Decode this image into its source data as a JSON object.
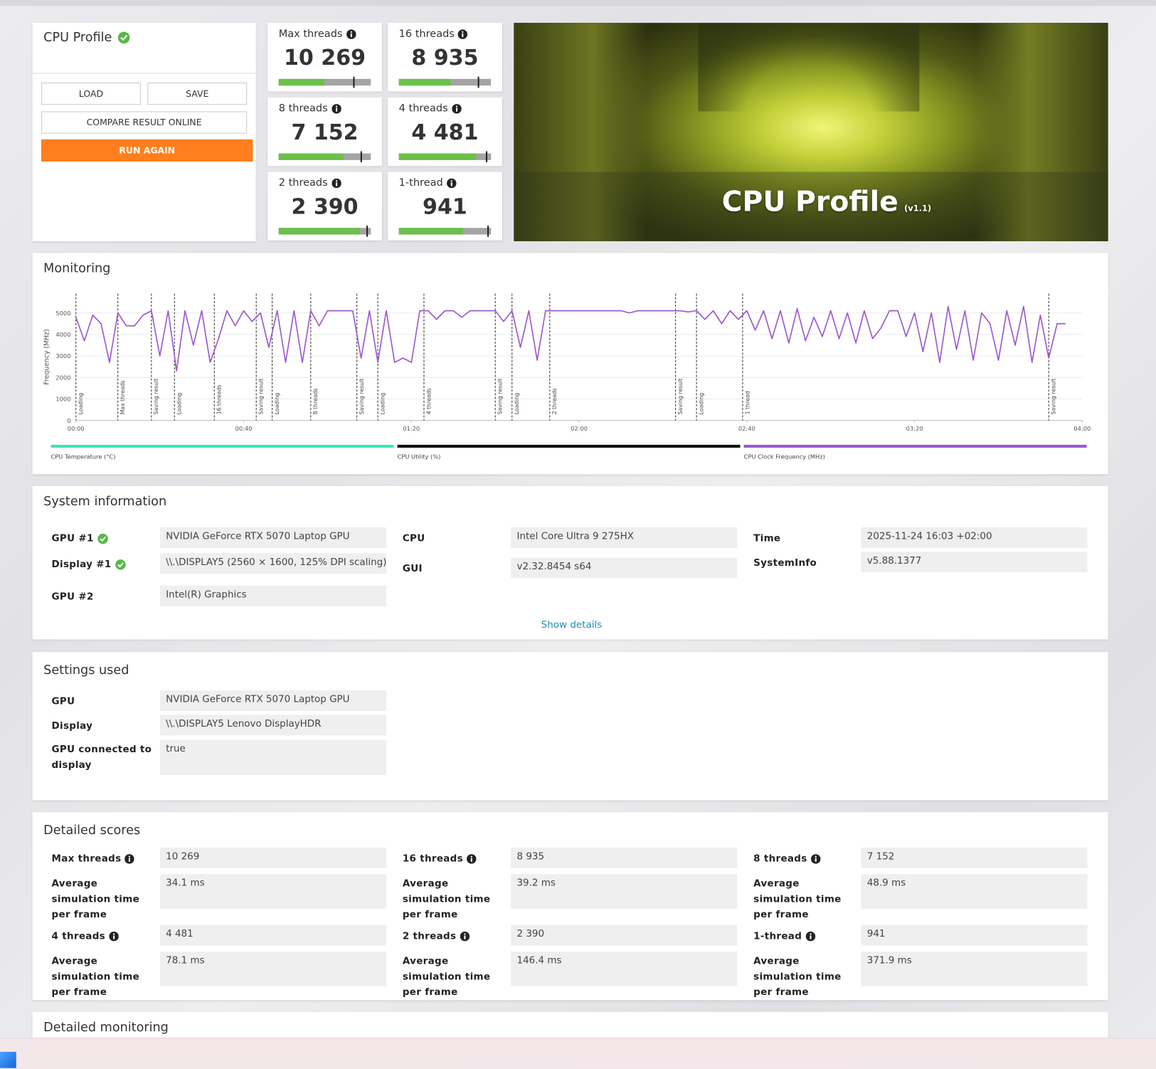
{
  "profile_card": {
    "title": "CPU Profile",
    "buttons": [
      "LOAD",
      "SAVE",
      "COMPARE RESULT ONLINE",
      "RUN AGAIN"
    ]
  },
  "scores": [
    {
      "label": "Max threads",
      "value": "10 269"
    },
    {
      "label": "16 threads",
      "value": "8 935"
    },
    {
      "label": "8 threads",
      "value": "7 152"
    },
    {
      "label": "4 threads",
      "value": "4 481"
    },
    {
      "label": "2 threads",
      "value": "2 390"
    },
    {
      "label": "1-thread",
      "value": "941"
    }
  ],
  "hero": {
    "title": "CPU Profile",
    "version": "(v1.1)"
  },
  "chart_data": {
    "type": "line",
    "title": "Monitoring",
    "y_label": "Frequency (MHz)",
    "xlim": [
      0,
      240
    ],
    "xticks": [
      {
        "value": 0,
        "label": "00:00"
      },
      {
        "value": 40,
        "label": "00:40"
      },
      {
        "value": 80,
        "label": "01:20"
      },
      {
        "value": 120,
        "label": "02:00"
      },
      {
        "value": 160,
        "label": "02:40"
      },
      {
        "value": 200,
        "label": "03:20"
      },
      {
        "value": 240,
        "label": "04:00"
      }
    ],
    "ylim": [
      0,
      5900
    ],
    "yticks": [
      0,
      1000,
      2000,
      3000,
      4000,
      5000
    ],
    "grid": true,
    "x": [
      0,
      2,
      4,
      6,
      8,
      10,
      12,
      14,
      16,
      18,
      20,
      22,
      24,
      26,
      28,
      30,
      32,
      34,
      36,
      38,
      40,
      42,
      44,
      46,
      48,
      50,
      52,
      54,
      56,
      58,
      60,
      62,
      64,
      66,
      68,
      70,
      72,
      74,
      76,
      78,
      80,
      82,
      84,
      86,
      88,
      90,
      92,
      94,
      96,
      98,
      100,
      102,
      104,
      106,
      108,
      110,
      112,
      114,
      116,
      118,
      120,
      122,
      124,
      126,
      128,
      130,
      132,
      134,
      136,
      138,
      140,
      142,
      144,
      146,
      148,
      150,
      152,
      154,
      156,
      158,
      160,
      162,
      164,
      166,
      168,
      170,
      172,
      174,
      176,
      178,
      180,
      182,
      184,
      186,
      188,
      190,
      192,
      194,
      196,
      198,
      200,
      202,
      204,
      206,
      208,
      210,
      212,
      214,
      216,
      218,
      220,
      222,
      224,
      226,
      228,
      230,
      232,
      234,
      236
    ],
    "series": [
      {
        "name": "CPU Clock Frequency (MHz)",
        "color": "#9b59d0",
        "values": [
          4800,
          3700,
          4900,
          4500,
          2700,
          5000,
          4400,
          4400,
          4900,
          5100,
          3000,
          5100,
          2300,
          5100,
          3500,
          5100,
          2700,
          3800,
          5100,
          4400,
          5100,
          4600,
          5000,
          3400,
          5100,
          2700,
          5100,
          2700,
          5100,
          4400,
          5100,
          5100,
          5100,
          5100,
          2900,
          5100,
          2700,
          5100,
          2700,
          2900,
          2700,
          5100,
          5100,
          4700,
          5100,
          5100,
          4800,
          5100,
          5100,
          5100,
          5100,
          4600,
          5100,
          3400,
          5100,
          2800,
          5100,
          5100,
          5100,
          5100,
          5100,
          5100,
          5100,
          5100,
          5100,
          5100,
          5000,
          5100,
          5100,
          5100,
          5100,
          5100,
          5100,
          5050,
          5100,
          4700,
          5100,
          4500,
          5100,
          4700,
          5100,
          4200,
          5100,
          3800,
          5100,
          3600,
          5200,
          3700,
          4800,
          3900,
          5100,
          3800,
          5000,
          3600,
          5100,
          3800,
          4300,
          5100,
          5100,
          3900,
          5000,
          3200,
          5000,
          2700,
          5300,
          3300,
          5100,
          2800,
          5000,
          4500,
          2800,
          5100,
          3500,
          5300,
          2700,
          4900,
          2900,
          4500,
          4500
        ]
      }
    ],
    "legend": [
      {
        "name": "CPU Temperature (°C)",
        "color": "#3ee6b9"
      },
      {
        "name": "CPU Utility (%)",
        "color": "#111111"
      }
    ],
    "markers": [
      {
        "x": 0,
        "label": "Loading"
      },
      {
        "x": 10,
        "label": "Max threads"
      },
      {
        "x": 18,
        "label": "Saving result"
      },
      {
        "x": 23.5,
        "label": "Loading"
      },
      {
        "x": 33,
        "label": "16 threads"
      },
      {
        "x": 43,
        "label": "Saving result"
      },
      {
        "x": 46.8,
        "label": "Loading"
      },
      {
        "x": 56,
        "label": "8 threads"
      },
      {
        "x": 67,
        "label": "Saving result"
      },
      {
        "x": 72,
        "label": "Loading"
      },
      {
        "x": 83,
        "label": "4 threads"
      },
      {
        "x": 100,
        "label": "Saving result"
      },
      {
        "x": 104,
        "label": "Loading"
      },
      {
        "x": 113,
        "label": "2 threads"
      },
      {
        "x": 143,
        "label": "Saving result"
      },
      {
        "x": 148,
        "label": "Loading"
      },
      {
        "x": 159,
        "label": "1 thread"
      },
      {
        "x": 232,
        "label": "Saving result"
      }
    ]
  },
  "system_info": {
    "title": "System information",
    "columns": [
      [
        {
          "label": "GPU #1",
          "value": "NVIDIA GeForce RTX 5070 Laptop GPU"
        },
        {
          "label": "Display #1",
          "value": "\\\\.\\DISPLAY5 (2560 × 1600, 125% DPI scaling)"
        },
        {
          "label": "GPU #2",
          "value": "Intel(R) Graphics"
        }
      ],
      [
        {
          "label": "CPU",
          "value": "Intel Core Ultra 9 275HX"
        },
        {
          "label": "GUI",
          "value": "v2.32.8454 s64"
        }
      ],
      [
        {
          "label": "Time",
          "value": "2025-11-24 16:03 +02:00"
        },
        {
          "label": "SystemInfo",
          "value": "v5.88.1377"
        }
      ]
    ],
    "show_details": "Show details"
  },
  "settings": {
    "title": "Settings used",
    "rows": [
      {
        "label": "GPU",
        "value": "NVIDIA GeForce RTX 5070 Laptop GPU"
      },
      {
        "label": "Display",
        "value": "\\\\.\\DISPLAY5 Lenovo DisplayHDR"
      },
      {
        "label": "GPU connected to display",
        "value": "true"
      }
    ]
  },
  "detailed_scores": {
    "title": "Detailed scores",
    "groups": [
      {
        "label": "Max threads",
        "score": "10 269",
        "sub_label": "Average simulation time per frame",
        "sub_value": "34.1 ms"
      },
      {
        "label": "16 threads",
        "score": "8 935",
        "sub_label": "Average simulation time per frame",
        "sub_value": "39.2 ms"
      },
      {
        "label": "8 threads",
        "score": "7 152",
        "sub_label": "Average simulation time per frame",
        "sub_value": "48.9 ms"
      },
      {
        "label": "4 threads",
        "score": "4 481",
        "sub_label": "Average simulation time per frame",
        "sub_value": "78.1 ms"
      },
      {
        "label": "2 threads",
        "score": "2 390",
        "sub_label": "Average simulation time per frame",
        "sub_value": "146.4 ms"
      },
      {
        "label": "1-thread",
        "score": "941",
        "sub_label": "Average simulation time per frame",
        "sub_value": "371.9 ms"
      }
    ]
  },
  "detailed_monitoring": {
    "title": "Detailed monitoring"
  }
}
